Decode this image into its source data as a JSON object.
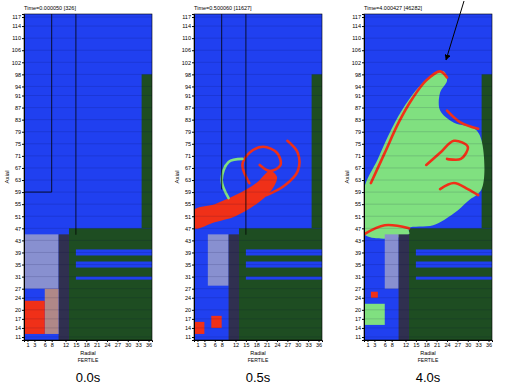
{
  "chart_data": [
    {
      "type": "cell_map",
      "title": "Time=0.000050 [326]",
      "caption": "0.0s",
      "x_label": "Radial",
      "y_label": "Axial",
      "annotations": [
        "FERTILE"
      ],
      "xlim": [
        0,
        37
      ],
      "ylim": [
        10,
        118
      ],
      "xticks": [
        1,
        3,
        6,
        8,
        12,
        15,
        18,
        21,
        24,
        27,
        30,
        33,
        36
      ],
      "yticks": [
        117,
        114,
        110,
        106,
        102,
        98,
        94,
        91,
        87,
        83,
        79,
        75,
        71,
        67,
        63,
        59,
        55,
        51,
        47,
        43,
        39,
        35,
        31,
        27,
        24,
        20,
        17,
        14,
        11
      ],
      "grid": true,
      "series": [
        {
          "type": "rect",
          "color": "#2040f0",
          "values": [
            [
              0,
              37,
              10,
              118
            ]
          ]
        },
        {
          "type": "rect",
          "color": "#1e4d22",
          "values": [
            [
              34,
              37,
              47,
              98
            ],
            [
              13,
              37,
              10,
              47
            ]
          ]
        },
        {
          "type": "rect",
          "color": "#2040f0",
          "values": [
            [
              15,
              37,
              38,
              40
            ],
            [
              15,
              37,
              34,
              36
            ],
            [
              15,
              37,
              30,
              31
            ]
          ]
        },
        {
          "type": "rect",
          "color": "#8890d0",
          "values": [
            [
              0,
              10,
              27,
              45
            ]
          ]
        },
        {
          "type": "rect",
          "color": "#303050",
          "values": [
            [
              10,
              13,
              10,
              45
            ]
          ]
        },
        {
          "type": "rect",
          "color": "#b08888",
          "values": [
            [
              6,
              10,
              12,
              27
            ]
          ]
        },
        {
          "type": "rect",
          "color": "#f03018",
          "values": [
            [
              0,
              6,
              12,
              23
            ]
          ]
        },
        {
          "type": "line",
          "color": "#000000",
          "values": [
            [
              8,
              118
            ],
            [
              8,
              59
            ],
            [
              0,
              59
            ],
            null,
            [
              15,
              118
            ],
            [
              15,
              45
            ]
          ]
        }
      ]
    },
    {
      "type": "cell_map",
      "title": "Time=0.500060 [11627]",
      "caption": "0.5s",
      "x_label": "Radial",
      "y_label": "Axial",
      "annotations": [
        "FERTILE"
      ],
      "xlim": [
        0,
        37
      ],
      "ylim": [
        10,
        118
      ],
      "xticks": [
        1,
        3,
        6,
        8,
        12,
        15,
        18,
        21,
        24,
        27,
        30,
        33,
        36
      ],
      "yticks": [
        117,
        114,
        110,
        106,
        102,
        98,
        94,
        91,
        87,
        83,
        79,
        75,
        71,
        67,
        63,
        59,
        55,
        51,
        47,
        43,
        39,
        35,
        31,
        27,
        24,
        20,
        17,
        14,
        11
      ],
      "grid": true,
      "series": [
        {
          "type": "rect",
          "color": "#2040f0",
          "values": [
            [
              0,
              37,
              10,
              118
            ]
          ]
        },
        {
          "type": "rect",
          "color": "#1e4d22",
          "values": [
            [
              34,
              37,
              47,
              98
            ],
            [
              13,
              37,
              10,
              47
            ]
          ]
        },
        {
          "type": "rect",
          "color": "#2040f0",
          "values": [
            [
              15,
              37,
              38,
              40
            ],
            [
              15,
              37,
              34,
              36
            ],
            [
              15,
              37,
              30,
              31
            ]
          ]
        },
        {
          "type": "rect",
          "color": "#8890d0",
          "values": [
            [
              4,
              10,
              28,
              45
            ]
          ]
        },
        {
          "type": "rect",
          "color": "#303050",
          "values": [
            [
              10,
              13,
              10,
              45
            ]
          ]
        },
        {
          "type": "rect",
          "color": "#f03018",
          "values": [
            [
              0,
              3,
              12,
              16
            ],
            [
              5,
              8,
              14,
              18
            ]
          ]
        },
        {
          "type": "polygon",
          "color": "#f03018",
          "values": [
            [
              0,
              47
            ],
            [
              6,
              49
            ],
            [
              12,
              51
            ],
            [
              18,
              55
            ],
            [
              22,
              59
            ],
            [
              24,
              64
            ],
            [
              22,
              66
            ],
            [
              18,
              62
            ],
            [
              12,
              58
            ],
            [
              6,
              55
            ],
            [
              0,
              53
            ]
          ]
        },
        {
          "type": "line",
          "color": "#f03018",
          "values": [
            [
              16,
              62
            ],
            [
              14,
              68
            ],
            [
              16,
              72
            ],
            [
              20,
              74
            ],
            [
              24,
              72
            ],
            [
              25,
              68
            ],
            [
              22,
              66
            ],
            [
              19,
              68
            ],
            null,
            [
              21,
              58
            ],
            [
              26,
              61
            ],
            [
              30,
              66
            ],
            [
              30,
              72
            ],
            [
              27,
              76
            ]
          ]
        },
        {
          "type": "line",
          "color": "#80e080",
          "values": [
            [
              10,
              57
            ],
            [
              8,
              63
            ],
            [
              10,
              69
            ],
            [
              14,
              70
            ]
          ]
        },
        {
          "type": "line",
          "color": "#000000",
          "values": [
            [
              8,
              118
            ],
            [
              8,
              60
            ],
            null,
            [
              15,
              118
            ],
            [
              15,
              45
            ]
          ]
        }
      ]
    },
    {
      "type": "cell_map",
      "title": "Time=4.000427 [46282]",
      "caption": "4.0s",
      "x_label": "Radial",
      "y_label": "Axial",
      "annotations": [
        "FERTILE"
      ],
      "xlim": [
        0,
        37
      ],
      "ylim": [
        10,
        118
      ],
      "xticks": [
        1,
        3,
        6,
        8,
        12,
        15,
        18,
        21,
        24,
        27,
        30,
        33,
        36
      ],
      "yticks": [
        117,
        114,
        110,
        106,
        102,
        98,
        94,
        91,
        87,
        83,
        79,
        75,
        71,
        67,
        63,
        59,
        55,
        51,
        47,
        43,
        39,
        35,
        31,
        27,
        24,
        20,
        17,
        14,
        11
      ],
      "grid": true,
      "series": [
        {
          "type": "rect",
          "color": "#2040f0",
          "values": [
            [
              0,
              37,
              10,
              118
            ]
          ]
        },
        {
          "type": "rect",
          "color": "#1e4d22",
          "values": [
            [
              34,
              37,
              47,
              98
            ],
            [
              13,
              37,
              10,
              47
            ]
          ]
        },
        {
          "type": "rect",
          "color": "#2040f0",
          "values": [
            [
              15,
              37,
              38,
              40
            ],
            [
              15,
              37,
              34,
              36
            ],
            [
              15,
              37,
              30,
              31
            ]
          ]
        },
        {
          "type": "polygon",
          "color": "#80e080",
          "values": [
            [
              0,
              45
            ],
            [
              0,
              60
            ],
            [
              4,
              70
            ],
            [
              8,
              80
            ],
            [
              12,
              88
            ],
            [
              16,
              94
            ],
            [
              20,
              98
            ],
            [
              23,
              99
            ],
            [
              24,
              96
            ],
            [
              22,
              92
            ],
            [
              22,
              86
            ],
            [
              26,
              82
            ],
            [
              32,
              80
            ],
            [
              34,
              76
            ],
            [
              34,
              60
            ],
            [
              30,
              56
            ],
            [
              26,
              52
            ],
            [
              20,
              48
            ],
            [
              13,
              47
            ],
            [
              13,
              45
            ]
          ]
        },
        {
          "type": "rect",
          "color": "#8890d0",
          "values": [
            [
              6,
              10,
              27,
              45
            ]
          ]
        },
        {
          "type": "rect",
          "color": "#303050",
          "values": [
            [
              10,
              13,
              10,
              45
            ]
          ]
        },
        {
          "type": "rect",
          "color": "#80e080",
          "values": [
            [
              0,
              6,
              15,
              22
            ]
          ]
        },
        {
          "type": "rect",
          "color": "#f03018",
          "values": [
            [
              2,
              4,
              24,
              26
            ]
          ]
        },
        {
          "type": "line",
          "color": "#f03018",
          "values": [
            [
              0,
              45
            ],
            [
              6,
              48
            ],
            [
              13,
              47
            ],
            null,
            [
              2,
              62
            ],
            [
              6,
              72
            ],
            [
              10,
              82
            ],
            [
              14,
              90
            ],
            [
              18,
              96
            ],
            [
              22,
              99
            ],
            [
              24,
              97
            ],
            null,
            [
              18,
              68
            ],
            [
              22,
              72
            ],
            [
              26,
              76
            ],
            [
              30,
              74
            ],
            [
              28,
              70
            ],
            [
              24,
              70
            ],
            null,
            [
              24,
              86
            ],
            [
              28,
              82
            ],
            [
              33,
              80
            ],
            null,
            [
              22,
              60
            ],
            [
              26,
              62
            ],
            [
              30,
              60
            ],
            [
              33,
              58
            ]
          ]
        }
      ]
    }
  ]
}
